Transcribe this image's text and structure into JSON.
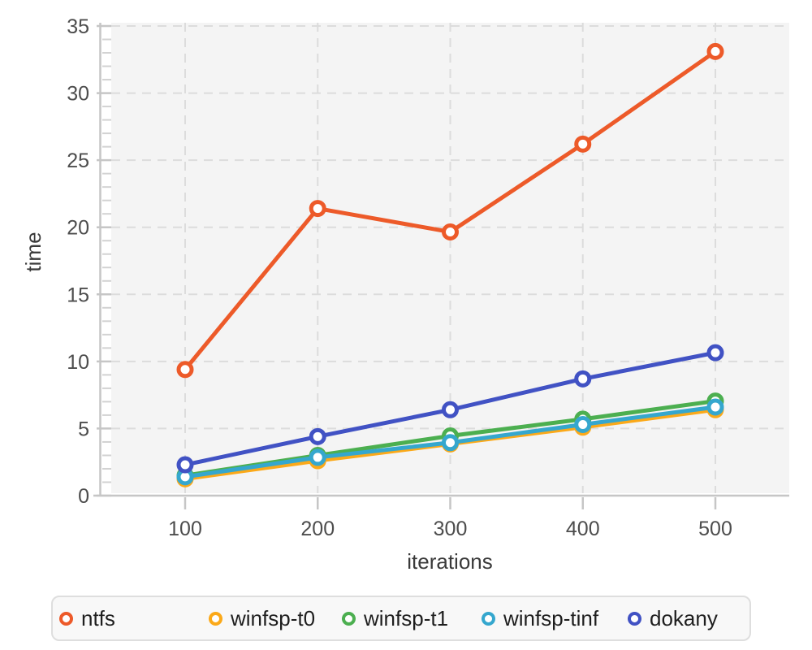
{
  "chart_data": {
    "type": "line",
    "title": "",
    "xlabel": "iterations",
    "ylabel": "time",
    "x": [
      100,
      200,
      300,
      400,
      500
    ],
    "x_ticks": [
      100,
      200,
      300,
      400,
      500
    ],
    "y_ticks": [
      0,
      5,
      10,
      15,
      20,
      25,
      30,
      35
    ],
    "y_minor_step": 1,
    "xlim": [
      100,
      500
    ],
    "ylim": [
      0,
      35
    ],
    "grid": "dashed",
    "legend_position": "bottom",
    "series": [
      {
        "name": "ntfs",
        "color": "#ED5A29",
        "values": [
          9.4,
          21.4,
          19.65,
          26.2,
          33.1
        ]
      },
      {
        "name": "winfsp-t0",
        "color": "#FBA919",
        "values": [
          1.25,
          2.6,
          3.85,
          5.1,
          6.4
        ]
      },
      {
        "name": "winfsp-t1",
        "color": "#4CAF50",
        "values": [
          1.5,
          3.0,
          4.45,
          5.7,
          7.05
        ]
      },
      {
        "name": "winfsp-tinf",
        "color": "#35A7CE",
        "values": [
          1.4,
          2.85,
          3.95,
          5.3,
          6.6
        ]
      },
      {
        "name": "dokany",
        "color": "#4152C4",
        "values": [
          2.3,
          4.4,
          6.4,
          8.7,
          10.65
        ]
      }
    ]
  },
  "colors": {
    "plot_bg": "#f4f4f4",
    "grid": "#dcdcdc",
    "axis": "#c6c6c6",
    "minor_tick": "#d2d2d2",
    "tick_label": "#4d4d4d",
    "axis_title": "#3a3a3a",
    "legend_border": "#dedede",
    "legend_bg": "#f8f8f8",
    "legend_text": "#1e1e1e",
    "marker_fill": "#ffffff"
  }
}
